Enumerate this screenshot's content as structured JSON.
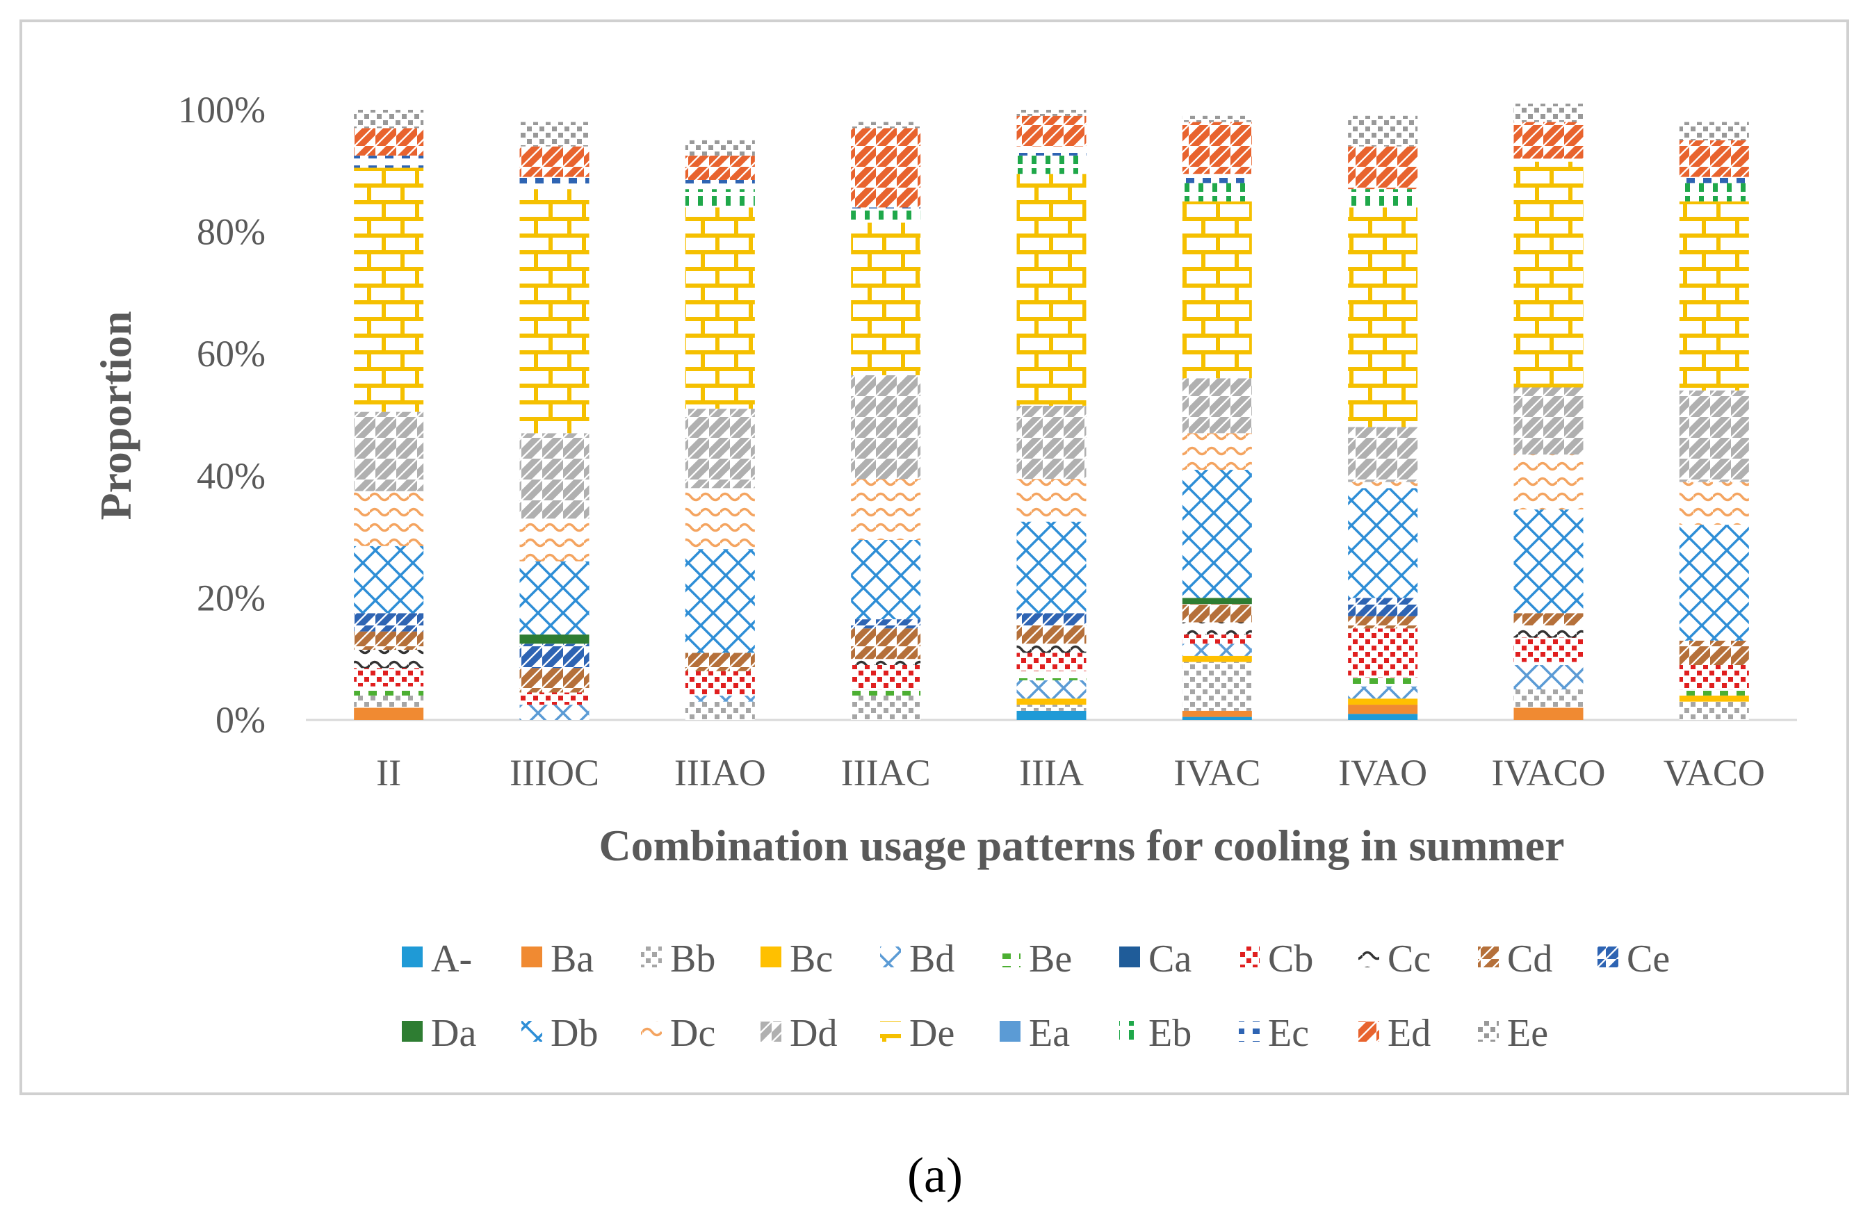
{
  "chart_data": {
    "type": "bar",
    "stacked": true,
    "percent": true,
    "title": "",
    "xlabel": "Combination usage patterns for cooling in summer",
    "ylabel": "Proportion",
    "ylim": [
      0,
      100
    ],
    "y_ticks": [
      "0%",
      "20%",
      "40%",
      "60%",
      "80%",
      "100%"
    ],
    "categories": [
      "II",
      "IIIOC",
      "IIIAO",
      "IIIAC",
      "IIIA",
      "IVAC",
      "IVAO",
      "IVACO",
      "VACO"
    ],
    "legend_position": "bottom",
    "series": [
      {
        "name": "A-",
        "color": "#1f9ad6",
        "values": [
          0,
          0,
          0,
          0,
          1.5,
          0.5,
          1,
          0,
          0
        ]
      },
      {
        "name": "Ba",
        "color": "#f08a32",
        "values": [
          2,
          0,
          0,
          0,
          0,
          1,
          1.5,
          2,
          0
        ]
      },
      {
        "name": "Bb",
        "color": "#a6a6a6",
        "values": [
          2,
          0,
          3,
          4,
          1,
          8,
          0,
          3,
          3
        ]
      },
      {
        "name": "Bc",
        "color": "#ffc000",
        "values": [
          0,
          0,
          0,
          0,
          1,
          1,
          1,
          0,
          1
        ]
      },
      {
        "name": "Bd",
        "color": "#5b9bd5",
        "values": [
          0,
          2.5,
          1,
          0,
          3,
          2,
          2,
          4,
          0
        ]
      },
      {
        "name": "Be",
        "color": "#4caf32",
        "values": [
          1.5,
          0,
          0,
          1,
          1.5,
          0,
          1.5,
          0.5,
          1
        ]
      },
      {
        "name": "Ca",
        "color": "#1f5c99",
        "values": [
          0,
          0,
          0,
          0,
          0,
          0,
          0,
          0,
          0
        ]
      },
      {
        "name": "Cb",
        "color": "#e01f1f",
        "values": [
          3,
          2,
          4,
          4,
          3,
          1.5,
          8,
          4,
          4
        ]
      },
      {
        "name": "Cc",
        "color": "#333333",
        "values": [
          3,
          0,
          0,
          1,
          1.5,
          2,
          0,
          2,
          0
        ]
      },
      {
        "name": "Cd",
        "color": "#b5703a",
        "values": [
          3,
          4,
          3,
          5,
          3,
          3,
          2,
          2,
          4
        ]
      },
      {
        "name": "Ce",
        "color": "#2e64b3",
        "values": [
          3,
          4,
          0,
          1.5,
          2,
          0,
          3,
          0,
          0
        ]
      },
      {
        "name": "Da",
        "color": "#2e7d32",
        "values": [
          0,
          1.5,
          0,
          0,
          0,
          1,
          0,
          0,
          0
        ]
      },
      {
        "name": "Db",
        "color": "#2e8ed6",
        "values": [
          11,
          12,
          17,
          13,
          15,
          21,
          18,
          17,
          19
        ]
      },
      {
        "name": "Dc",
        "color": "#f4a460",
        "values": [
          9,
          7,
          10,
          10,
          7,
          6,
          1,
          9,
          7
        ]
      },
      {
        "name": "Dd",
        "color": "#b0b0b0",
        "values": [
          13,
          14,
          13,
          17,
          12,
          9,
          9,
          11,
          15
        ]
      },
      {
        "name": "De",
        "color": "#f5c000",
        "values": [
          40,
          40,
          33,
          25,
          38,
          29,
          36,
          37,
          31
        ]
      },
      {
        "name": "Ea",
        "color": "#5b9bd5",
        "values": [
          0,
          0,
          0,
          0,
          0,
          0,
          0,
          0,
          0
        ]
      },
      {
        "name": "Eb",
        "color": "#1fa84a",
        "values": [
          0,
          0,
          3,
          2,
          3,
          3,
          3,
          0,
          3
        ]
      },
      {
        "name": "Ec",
        "color": "#2e64b3",
        "values": [
          2,
          2,
          1.5,
          0.5,
          1.5,
          1.5,
          0,
          0.5,
          1
        ]
      },
      {
        "name": "Ed",
        "color": "#e8632e",
        "values": [
          4.5,
          5,
          4,
          13,
          5,
          8.5,
          7,
          6,
          6
        ]
      },
      {
        "name": "Ee",
        "color": "#999999",
        "values": [
          3,
          4,
          2.5,
          1,
          1,
          1,
          5,
          3,
          3
        ]
      }
    ]
  },
  "caption": "(a)"
}
